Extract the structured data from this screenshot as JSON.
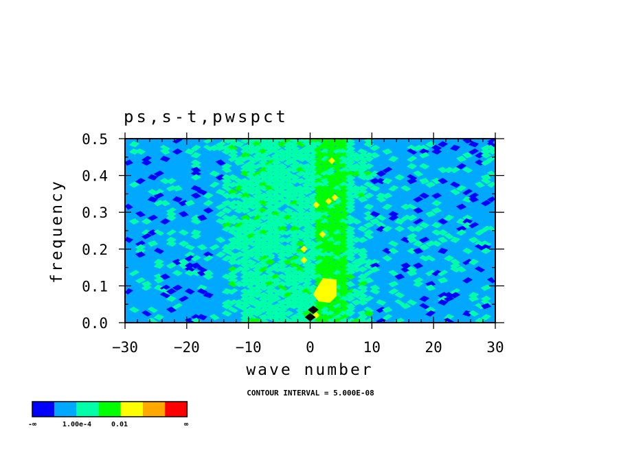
{
  "chart_data": {
    "type": "heatmap",
    "title": "ps,s-t,pwspct",
    "xlabel": "wave number",
    "ylabel": "frequency",
    "xlim": [
      -30,
      30
    ],
    "ylim": [
      0,
      0.5
    ],
    "x_ticks": [
      "-30",
      "-20",
      "-10",
      "0",
      "10",
      "20",
      "30"
    ],
    "x_tick_values": [
      -30,
      -20,
      -10,
      0,
      10,
      20,
      30
    ],
    "y_ticks": [
      "0.0",
      "0.1",
      "0.2",
      "0.3",
      "0.4",
      "0.5"
    ],
    "y_tick_values": [
      0,
      0.1,
      0.2,
      0.3,
      0.4,
      0.5
    ],
    "grid": false,
    "contour_interval_text": "CONTOUR INTERVAL = 5.000E-08",
    "levels": [
      {
        "color": "#0000ff"
      },
      {
        "color": "#00a8ff"
      },
      {
        "color": "#00ffa8"
      },
      {
        "color": "#00ff00"
      },
      {
        "color": "#ffff00"
      },
      {
        "color": "#ffa800"
      },
      {
        "color": "#ff0000"
      }
    ],
    "colorbar_labels": [
      "-∞",
      "1.00e-4",
      "0.01",
      "∞"
    ],
    "bands": [
      {
        "name": "background",
        "x_range": [
          -30,
          30
        ],
        "level": 1
      },
      {
        "name": "teal-band",
        "x_range": [
          -14,
          10
        ],
        "level": 2
      },
      {
        "name": "green-core",
        "x_range": [
          0.5,
          6
        ],
        "level": 3
      }
    ],
    "hotspots": [
      {
        "x": 2.5,
        "y": 0.08,
        "level": 4
      },
      {
        "x": 1.0,
        "y": 0.02,
        "level": 4
      },
      {
        "x": 3.0,
        "y": 0.33,
        "level": 4
      },
      {
        "x": 4.0,
        "y": 0.34,
        "level": 4
      },
      {
        "x": 1.0,
        "y": 0.32,
        "level": 4
      },
      {
        "x": -1.0,
        "y": 0.17,
        "level": 4
      },
      {
        "x": -1.0,
        "y": 0.2,
        "level": 4
      },
      {
        "x": 2.0,
        "y": 0.24,
        "level": 4
      },
      {
        "x": 3.5,
        "y": 0.44,
        "level": 4
      }
    ],
    "minima": [
      {
        "x": 0.5,
        "y": 0.035
      },
      {
        "x": 0.0,
        "y": 0.015
      }
    ]
  }
}
